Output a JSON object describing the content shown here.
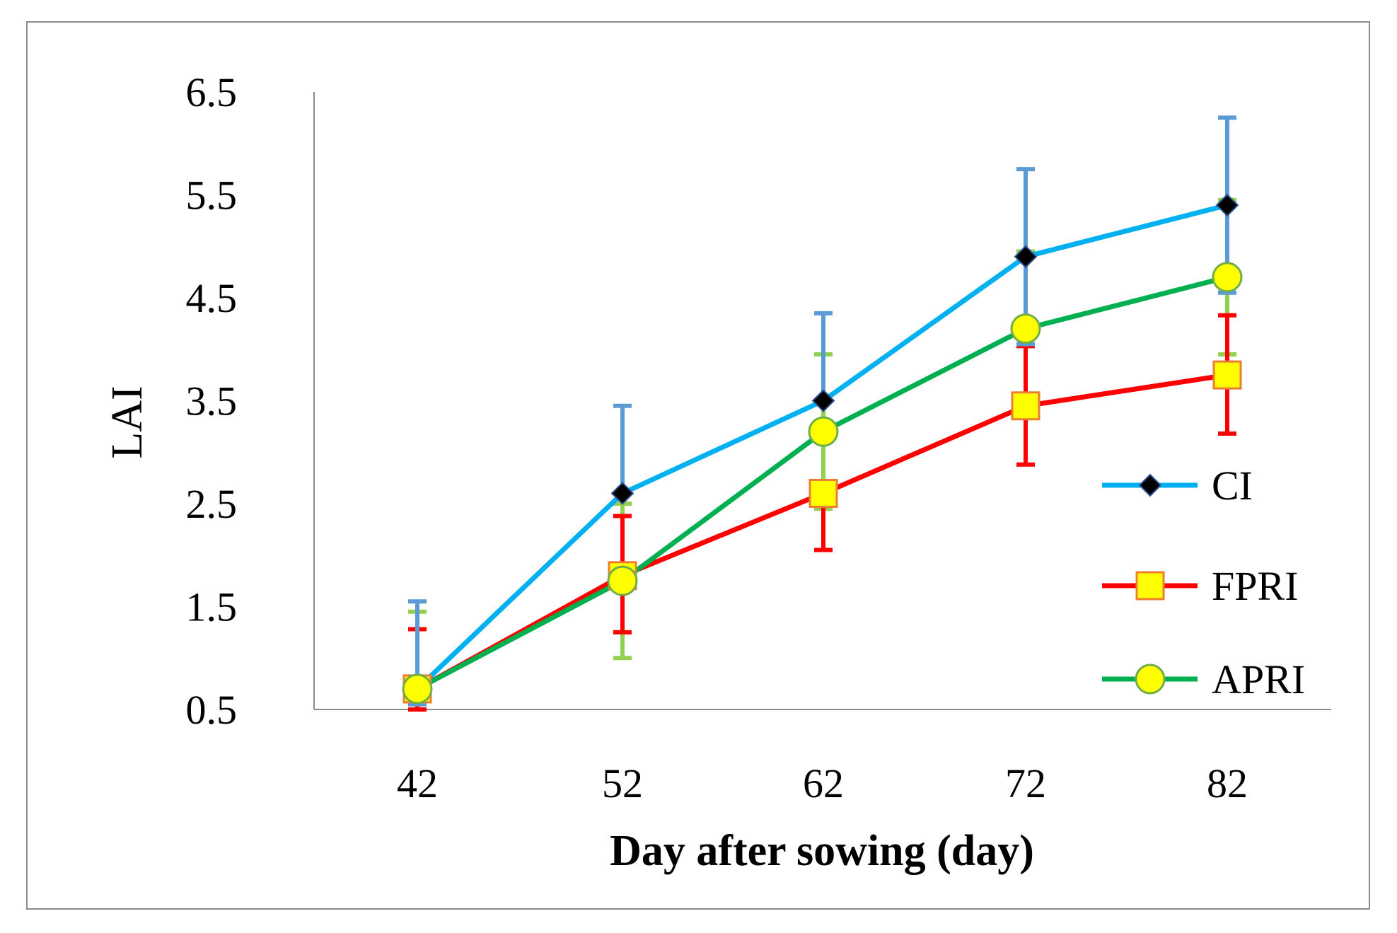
{
  "chart_data": {
    "type": "line",
    "title": "",
    "xlabel": "Day after sowing (day)",
    "ylabel": "LAI",
    "categories": [
      "42",
      "52",
      "62",
      "72",
      "82"
    ],
    "yticks": [
      "0.5",
      "1.5",
      "2.5",
      "3.5",
      "4.5",
      "5.5",
      "6.5"
    ],
    "ylim": [
      0.5,
      6.5
    ],
    "grid": false,
    "legend_position": "right",
    "series": [
      {
        "name": "CI",
        "values": [
          0.7,
          2.6,
          3.5,
          4.9,
          5.4
        ],
        "error_high": [
          1.55,
          3.45,
          4.35,
          5.75,
          6.25
        ],
        "error_low": [
          0.55,
          2.6,
          3.5,
          4.05,
          4.55
        ],
        "line_color": "#00B0F0",
        "error_color": "#5B9BD5",
        "marker": "diamond",
        "marker_fill": "#000000",
        "marker_stroke": "#2F5597"
      },
      {
        "name": "FPRI",
        "values": [
          0.7,
          1.8,
          2.6,
          3.45,
          3.75
        ],
        "error_high": [
          1.28,
          2.38,
          2.6,
          4.03,
          4.33
        ],
        "error_low": [
          0.5,
          1.25,
          2.05,
          2.88,
          3.18
        ],
        "line_color": "#FF0000",
        "error_color": "#FF0000",
        "marker": "square",
        "marker_fill": "#FFFF00",
        "marker_stroke": "#ED7D31"
      },
      {
        "name": "APRI",
        "values": [
          0.7,
          1.75,
          3.2,
          4.2,
          4.7
        ],
        "error_high": [
          1.45,
          2.5,
          3.95,
          4.95,
          5.45
        ],
        "error_low": [
          0.5,
          1.0,
          2.45,
          3.45,
          3.95
        ],
        "line_color": "#00B050",
        "error_color": "#92D050",
        "marker": "circle",
        "marker_fill": "#FFFF00",
        "marker_stroke": "#70AD47"
      }
    ]
  }
}
